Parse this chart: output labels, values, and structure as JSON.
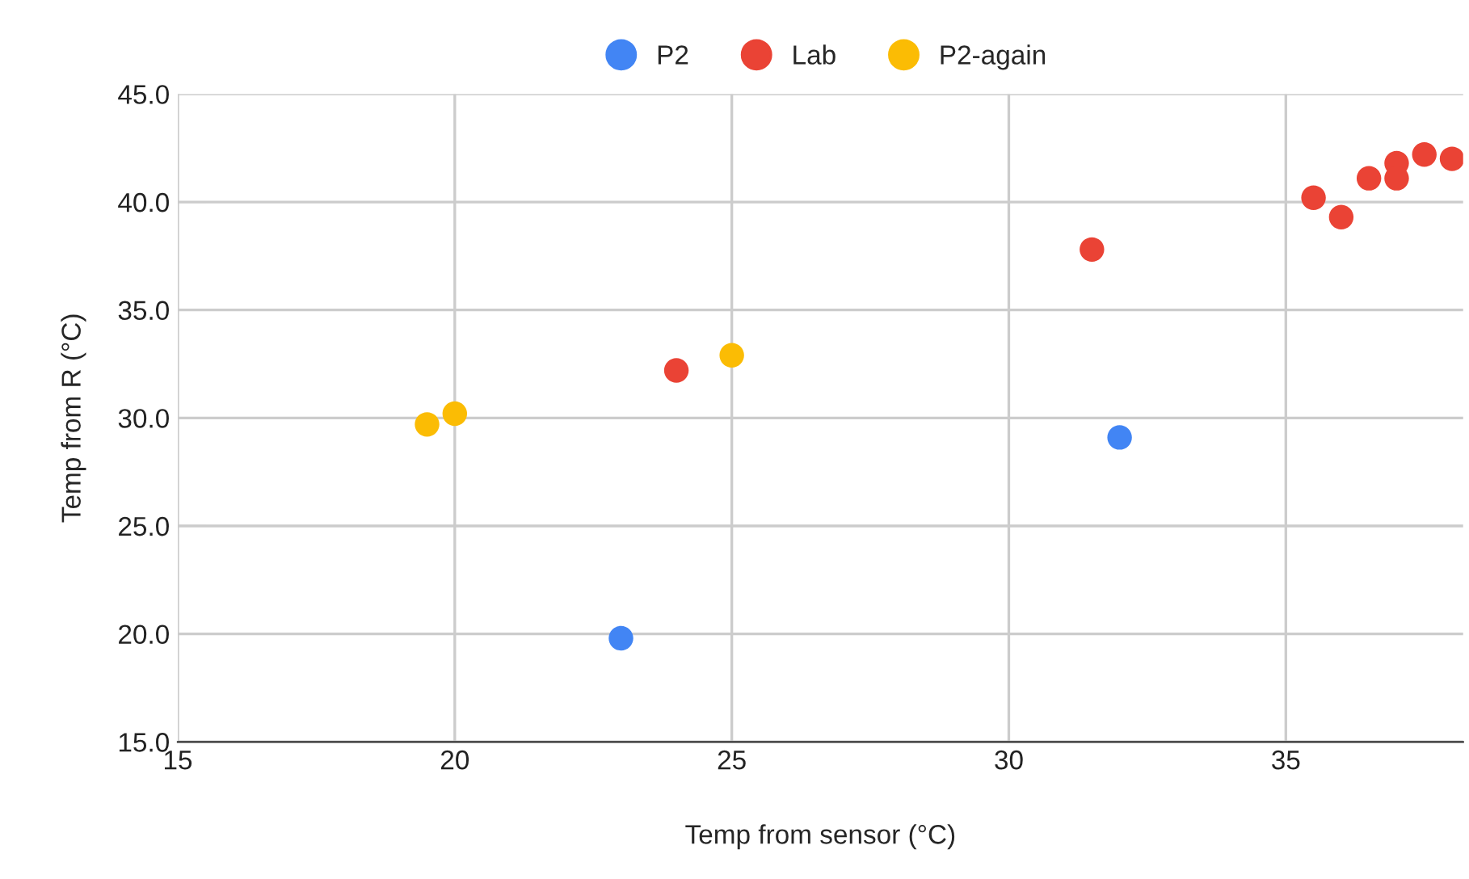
{
  "chart_data": {
    "type": "scatter",
    "xlabel": "Temp from sensor (°C)",
    "ylabel": "Temp from R (°C)",
    "series": [
      {
        "name": "P2",
        "color": "#4285f4",
        "x": [
          23,
          32
        ],
        "values": [
          19.8,
          29.1
        ]
      },
      {
        "name": "Lab",
        "color": "#ea4335",
        "x": [
          24,
          31.5,
          35.5,
          36,
          36.5,
          37,
          37,
          37.5,
          38
        ],
        "values": [
          32.2,
          37.8,
          40.2,
          39.3,
          41.1,
          41.8,
          41.1,
          42.2,
          42.0
        ]
      },
      {
        "name": "P2-again",
        "color": "#fbbc04",
        "x": [
          19.5,
          20,
          25
        ],
        "values": [
          29.7,
          30.2,
          32.9
        ]
      }
    ],
    "xlim": [
      15,
      38.2
    ],
    "xticks": [
      15,
      20,
      25,
      30,
      35
    ],
    "ylim": [
      15,
      45
    ],
    "yticks": [
      {
        "value": 15,
        "label": "15.0"
      },
      {
        "value": 20,
        "label": "20.0"
      },
      {
        "value": 25,
        "label": "25.0"
      },
      {
        "value": 30,
        "label": "30.0"
      },
      {
        "value": 35,
        "label": "35.0"
      },
      {
        "value": 40,
        "label": "40.0"
      },
      {
        "value": 45,
        "label": "45.0"
      }
    ],
    "grid": true,
    "legend": "top",
    "marker": "circle"
  }
}
